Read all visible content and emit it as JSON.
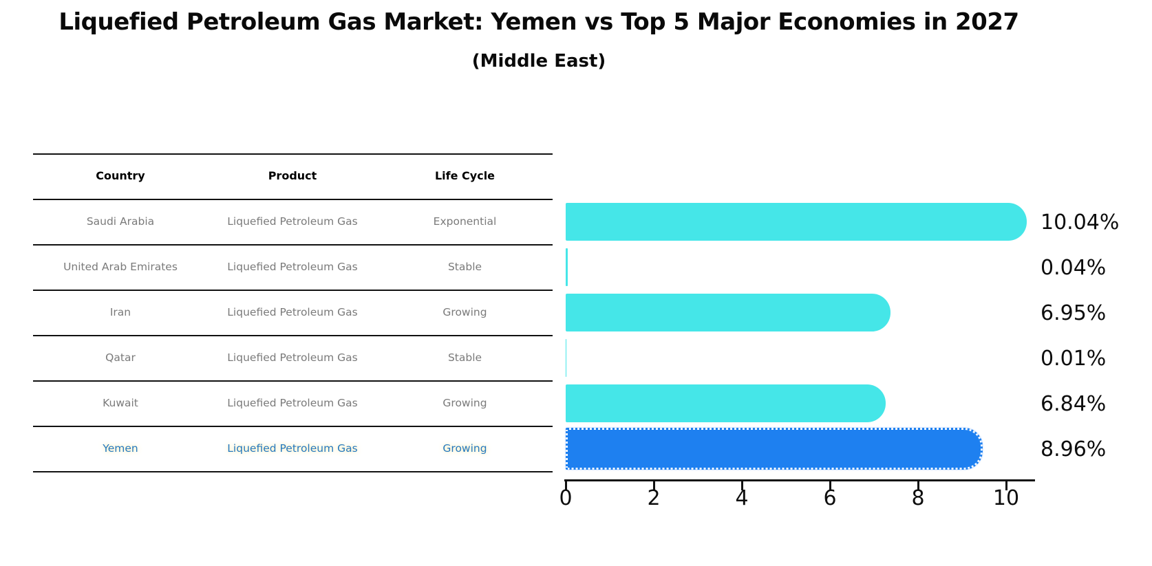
{
  "title": "Liquefied Petroleum Gas Market: Yemen vs Top 5 Major Economies in 2027",
  "subtitle": "(Middle East)",
  "table": {
    "headers": [
      "Country",
      "Product",
      "Life Cycle"
    ],
    "rows": [
      {
        "country": "Saudi Arabia",
        "product": "Liquefied Petroleum Gas",
        "life_cycle": "Exponential",
        "highlight": false
      },
      {
        "country": "United Arab Emirates",
        "product": "Liquefied Petroleum Gas",
        "life_cycle": "Stable",
        "highlight": false
      },
      {
        "country": "Iran",
        "product": "Liquefied Petroleum Gas",
        "life_cycle": "Growing",
        "highlight": false
      },
      {
        "country": "Qatar",
        "product": "Liquefied Petroleum Gas",
        "life_cycle": "Stable",
        "highlight": false
      },
      {
        "country": "Kuwait",
        "product": "Liquefied Petroleum Gas",
        "life_cycle": "Growing",
        "highlight": false
      },
      {
        "country": "Yemen",
        "product": "Liquefied Petroleum Gas",
        "life_cycle": "Growing",
        "highlight": true
      }
    ]
  },
  "chart_data": {
    "type": "bar",
    "orientation": "horizontal",
    "categories": [
      "Saudi Arabia",
      "United Arab Emirates",
      "Iran",
      "Qatar",
      "Kuwait",
      "Yemen"
    ],
    "values": [
      10.04,
      0.04,
      6.95,
      0.01,
      6.84,
      8.96
    ],
    "value_labels": [
      "10.04%",
      "0.04%",
      "6.95%",
      "0.01%",
      "6.84%",
      "8.96%"
    ],
    "x_ticks": [
      "0",
      "2",
      "4",
      "6",
      "8",
      "10"
    ],
    "x_tick_values": [
      0,
      2,
      4,
      6,
      8,
      10
    ],
    "xlim": [
      0,
      10.7
    ],
    "grid": false,
    "legend": false,
    "bar_color": "#45E6E8",
    "highlight_color": "#1E80F0",
    "highlight_index": 5
  },
  "colors": {
    "background": "#ffffff",
    "table_line": "#111111",
    "table_text": "#7a7a7a",
    "header_text": "#000000",
    "highlight_text": "#2579be",
    "bar_cyan": "#45E6E8",
    "bar_blue": "#1E80F0",
    "axis": "#111111"
  }
}
